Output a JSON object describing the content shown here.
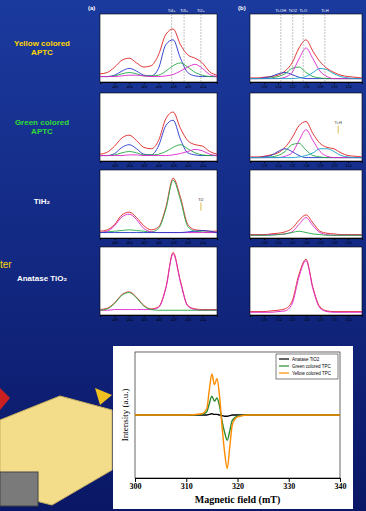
{
  "slide_texts": [
    "ter"
  ],
  "chart_data": [
    {
      "type": "line",
      "title": "Yellow colored APTC",
      "x": [
        468,
        467,
        466,
        465,
        464,
        463,
        462,
        461,
        460,
        459,
        458,
        457,
        456,
        455,
        454,
        453,
        452
      ],
      "xlim": [
        468,
        452
      ],
      "xticks": [
        466,
        464,
        462,
        460,
        458,
        456,
        454
      ],
      "ylim": [
        0,
        100
      ],
      "tick_labels": "x",
      "series": [
        {
          "color": "#e02020",
          "values": [
            12,
            14,
            22,
            32,
            35,
            28,
            22,
            24,
            40,
            70,
            78,
            55,
            40,
            35,
            28,
            15,
            10
          ]
        },
        {
          "color": "#2233cc",
          "values": [
            8,
            8,
            10,
            16,
            20,
            16,
            10,
            9,
            20,
            55,
            62,
            35,
            14,
            9,
            8,
            8,
            8
          ]
        },
        {
          "color": "#22aa44",
          "values": [
            8,
            8,
            9,
            12,
            14,
            12,
            9,
            9,
            10,
            16,
            24,
            28,
            22,
            14,
            10,
            8,
            8
          ]
        },
        {
          "color": "#dd22cc",
          "values": [
            8,
            8,
            8,
            9,
            10,
            10,
            9,
            8,
            8,
            9,
            11,
            16,
            22,
            26,
            20,
            11,
            8
          ]
        }
      ],
      "annotations": [
        {
          "text": "(a)"
        },
        {
          "x": 458.2,
          "text": "Ti4+"
        },
        {
          "x": 456.5,
          "text": "Ti3+"
        },
        {
          "x": 454.2,
          "text": "Ti2+"
        }
      ]
    },
    {
      "type": "line",
      "title": "Green colored APTC",
      "x": [
        468,
        467,
        466,
        465,
        464,
        463,
        462,
        461,
        460,
        459,
        458,
        457,
        456,
        455,
        454,
        453,
        452
      ],
      "xlim": [
        468,
        452
      ],
      "xticks": [
        466,
        464,
        462,
        460,
        458,
        456,
        454
      ],
      "ylim": [
        0,
        100
      ],
      "tick_labels": "x",
      "series": [
        {
          "color": "#e02020",
          "values": [
            10,
            13,
            22,
            34,
            38,
            30,
            20,
            18,
            30,
            62,
            72,
            48,
            30,
            24,
            22,
            14,
            10
          ]
        },
        {
          "color": "#2233cc",
          "values": [
            8,
            8,
            11,
            20,
            24,
            18,
            10,
            9,
            22,
            52,
            60,
            32,
            12,
            9,
            8,
            8,
            8
          ]
        },
        {
          "color": "#22aa44",
          "values": [
            8,
            8,
            9,
            12,
            14,
            12,
            9,
            9,
            10,
            14,
            20,
            24,
            18,
            12,
            9,
            8,
            8
          ]
        },
        {
          "color": "#dd22cc",
          "values": [
            8,
            8,
            8,
            8,
            9,
            9,
            8,
            8,
            8,
            8,
            9,
            11,
            14,
            17,
            15,
            10,
            8
          ]
        }
      ]
    },
    {
      "type": "line",
      "title": "TiH₂",
      "x": [
        468,
        467,
        466,
        465,
        464,
        463,
        462,
        461,
        460,
        459,
        458,
        457,
        456,
        455,
        454,
        453,
        452
      ],
      "xlim": [
        468,
        452
      ],
      "xticks": [
        466,
        464,
        462,
        460,
        458,
        456,
        454
      ],
      "ylim": [
        0,
        100
      ],
      "tick_labels": "x",
      "series": [
        {
          "color": "#e02020",
          "values": [
            10,
            12,
            20,
            34,
            38,
            30,
            18,
            12,
            16,
            45,
            88,
            60,
            20,
            12,
            11,
            10,
            10
          ]
        },
        {
          "color": "#22aa44",
          "values": [
            8,
            9,
            10,
            11,
            12,
            11,
            10,
            9,
            14,
            42,
            85,
            56,
            17,
            10,
            9,
            8,
            8
          ]
        },
        {
          "color": "#dd22cc",
          "values": [
            8,
            10,
            18,
            31,
            35,
            27,
            14,
            9,
            8,
            8,
            8,
            8,
            8,
            8,
            8,
            8,
            8
          ]
        },
        {
          "color": "#2233cc",
          "values": [
            8,
            8,
            8,
            8,
            8,
            8,
            8,
            8,
            8,
            8,
            8,
            8,
            9,
            10,
            11,
            10,
            8
          ]
        }
      ],
      "annotations": [
        {
          "x": 454.2,
          "text": "Ti2"
        }
      ]
    },
    {
      "type": "line",
      "title": "Anatase TiO₂",
      "x": [
        468,
        467,
        466,
        465,
        464,
        463,
        462,
        461,
        460,
        459,
        458,
        457,
        456,
        455,
        454,
        453,
        452
      ],
      "xlim": [
        468,
        452
      ],
      "xticks": [
        466,
        464,
        462,
        460,
        458,
        456,
        454
      ],
      "ylim": [
        0,
        100
      ],
      "tick_labels": "x",
      "series": [
        {
          "color": "#e02020",
          "values": [
            8,
            10,
            18,
            30,
            34,
            26,
            14,
            9,
            12,
            40,
            92,
            50,
            14,
            9,
            8,
            8,
            8
          ]
        },
        {
          "color": "#dd22cc",
          "values": [
            7,
            7,
            8,
            8,
            8,
            8,
            8,
            8,
            11,
            39,
            90,
            48,
            13,
            8,
            7,
            7,
            7
          ]
        },
        {
          "color": "#22aa44",
          "values": [
            7,
            9,
            17,
            29,
            33,
            25,
            13,
            8,
            7,
            7,
            7,
            7,
            7,
            7,
            7,
            7,
            7
          ]
        }
      ]
    },
    {
      "type": "line",
      "x": [
        538,
        537,
        536,
        535,
        534,
        533,
        532,
        531,
        530,
        529,
        528,
        527,
        526,
        525,
        524,
        523,
        522
      ],
      "xlim": [
        538,
        522
      ],
      "xticks": [
        536,
        534,
        532,
        530,
        528,
        526,
        524
      ],
      "ylim": [
        0,
        100
      ],
      "tick_labels": "x",
      "series": [
        {
          "color": "#e02020",
          "values": [
            6,
            6,
            7,
            8,
            10,
            16,
            28,
            50,
            62,
            45,
            30,
            20,
            14,
            10,
            8,
            7,
            6
          ]
        },
        {
          "color": "#2233cc",
          "values": [
            5,
            5,
            6,
            8,
            12,
            14,
            11,
            7,
            5,
            5,
            5,
            5,
            5,
            5,
            5,
            5,
            5
          ]
        },
        {
          "color": "#22aa44",
          "values": [
            5,
            5,
            5,
            6,
            8,
            12,
            20,
            22,
            14,
            8,
            6,
            5,
            5,
            5,
            5,
            5,
            5
          ]
        },
        {
          "color": "#dd22cc",
          "values": [
            5,
            5,
            5,
            5,
            5,
            7,
            14,
            34,
            50,
            34,
            16,
            8,
            5,
            5,
            5,
            5,
            5
          ]
        },
        {
          "color": "#1aa0c8",
          "values": [
            5,
            5,
            5,
            5,
            5,
            5,
            5,
            6,
            8,
            14,
            20,
            18,
            12,
            8,
            6,
            5,
            5
          ]
        }
      ],
      "annotations": [
        {
          "text": "(b)"
        },
        {
          "x": 533.6,
          "text": "Ti-OH"
        },
        {
          "x": 531.9,
          "text": "TiO2"
        },
        {
          "x": 530.4,
          "text": "Ti-O"
        },
        {
          "x": 527.3,
          "text": "Ti-H"
        }
      ]
    },
    {
      "type": "line",
      "x": [
        538,
        537,
        536,
        535,
        534,
        533,
        532,
        531,
        530,
        529,
        528,
        527,
        526,
        525,
        524,
        523,
        522
      ],
      "xlim": [
        538,
        522
      ],
      "xticks": [
        536,
        534,
        532,
        530,
        528,
        526,
        524
      ],
      "ylim": [
        0,
        100
      ],
      "tick_labels": "x",
      "series": [
        {
          "color": "#e02020",
          "values": [
            6,
            6,
            7,
            9,
            12,
            20,
            34,
            52,
            58,
            40,
            26,
            20,
            18,
            12,
            8,
            7,
            6
          ]
        },
        {
          "color": "#2233cc",
          "values": [
            5,
            5,
            6,
            8,
            14,
            18,
            14,
            8,
            5,
            5,
            5,
            5,
            5,
            5,
            5,
            5,
            5
          ]
        },
        {
          "color": "#22aa44",
          "values": [
            5,
            5,
            5,
            6,
            8,
            14,
            24,
            26,
            16,
            8,
            6,
            5,
            5,
            5,
            5,
            5,
            5
          ]
        },
        {
          "color": "#dd22cc",
          "values": [
            5,
            5,
            5,
            5,
            5,
            7,
            12,
            30,
            46,
            30,
            14,
            7,
            5,
            5,
            5,
            5,
            5
          ]
        },
        {
          "color": "#1aa0c8",
          "values": [
            5,
            5,
            5,
            5,
            5,
            5,
            5,
            6,
            8,
            12,
            18,
            18,
            14,
            8,
            6,
            5,
            5
          ]
        }
      ],
      "annotations": [
        {
          "x": 525.4,
          "text": "Ti-H"
        }
      ]
    },
    {
      "type": "line",
      "x": [
        538,
        537,
        536,
        535,
        534,
        533,
        532,
        531,
        530,
        529,
        528,
        527,
        526,
        525,
        524,
        523,
        522
      ],
      "xlim": [
        538,
        522
      ],
      "xticks": [
        536,
        534,
        532,
        530,
        528,
        526,
        524
      ],
      "ylim": [
        0,
        100
      ],
      "tick_labels": "x",
      "series": [
        {
          "color": "#e02020",
          "values": [
            5,
            5,
            5,
            6,
            7,
            9,
            14,
            26,
            34,
            22,
            10,
            7,
            6,
            5,
            5,
            5,
            5
          ]
        },
        {
          "color": "#dd22cc",
          "values": [
            4,
            4,
            4,
            5,
            5,
            6,
            9,
            20,
            30,
            18,
            8,
            5,
            4,
            4,
            4,
            4,
            4
          ]
        },
        {
          "color": "#22aa44",
          "values": [
            4,
            4,
            4,
            4,
            5,
            6,
            8,
            10,
            8,
            6,
            5,
            4,
            4,
            4,
            4,
            4,
            4
          ]
        }
      ]
    },
    {
      "type": "line",
      "x": [
        538,
        537,
        536,
        535,
        534,
        533,
        532,
        531,
        530,
        529,
        528,
        527,
        526,
        525,
        524,
        523,
        522
      ],
      "xlim": [
        538,
        522
      ],
      "xticks": [
        536,
        534,
        532,
        530,
        528,
        526,
        524
      ],
      "ylim": [
        0,
        100
      ],
      "tick_labels": "x",
      "series": [
        {
          "color": "#e02020",
          "values": [
            5,
            5,
            5,
            6,
            7,
            9,
            20,
            60,
            82,
            40,
            12,
            6,
            5,
            5,
            5,
            5,
            5
          ]
        },
        {
          "color": "#dd22cc",
          "values": [
            4,
            4,
            4,
            4,
            5,
            6,
            16,
            56,
            80,
            38,
            10,
            5,
            4,
            4,
            4,
            4,
            4
          ]
        }
      ]
    },
    {
      "type": "line",
      "xlabel": "Magnetic field (mT)",
      "ylabel": "Intensity (a.u.)",
      "x": [
        300,
        310,
        313,
        314,
        314.5,
        315,
        315.5,
        316,
        316.5,
        317,
        317.5,
        318,
        318.5,
        319,
        320,
        322,
        330,
        340
      ],
      "xlim": [
        300,
        340
      ],
      "xticks": [
        300,
        310,
        320,
        330,
        340
      ],
      "ylim": [
        -100,
        100
      ],
      "tick_labels": "x",
      "legend": "upper right",
      "series": [
        {
          "name": "Anatase TiO2",
          "color": "#000000",
          "values": [
            0,
            0,
            0,
            0,
            1,
            2,
            1,
            1,
            0,
            -1,
            -2,
            -2,
            -1,
            0,
            0,
            0,
            0,
            0
          ]
        },
        {
          "name": "Green colored TPC",
          "color": "#2e8b2e",
          "values": [
            0,
            0,
            1,
            5,
            18,
            30,
            22,
            27,
            14,
            -10,
            -28,
            -40,
            -25,
            -8,
            -2,
            0,
            0,
            0
          ]
        },
        {
          "name": "Yellow colored TPC",
          "color": "#ff8c00",
          "values": [
            0,
            0,
            2,
            10,
            40,
            65,
            48,
            58,
            30,
            -20,
            -60,
            -85,
            -50,
            -15,
            -3,
            0,
            0,
            0
          ]
        }
      ]
    }
  ]
}
